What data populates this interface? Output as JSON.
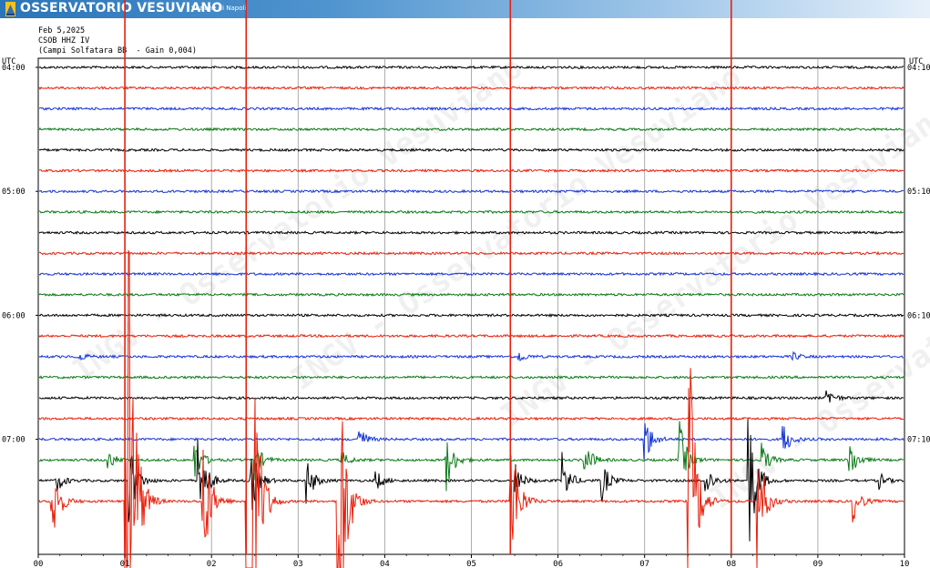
{
  "header": {
    "brand": "OSSERVATORIO VESUVIANO",
    "section": "Sezione di Napoli",
    "date": "Feb 5,2025",
    "station": "CSOB HHZ IV",
    "site": "(Campi Solfatara BB  - Gain 0,004)",
    "watermark": "INGV - Osservatorio Vesuviano"
  },
  "chart_data": {
    "type": "line",
    "title": "",
    "xlabel": "",
    "ylabel": "",
    "x_ticks": [
      "00",
      "01",
      "02",
      "03",
      "04",
      "05",
      "06",
      "07",
      "08",
      "09",
      "10"
    ],
    "xlim": [
      0,
      10
    ],
    "left_axis_label": "UTC",
    "right_axis_label": "UTC",
    "left_ticks": [
      "04:00",
      "05:00",
      "06:00",
      "07:00"
    ],
    "right_ticks": [
      "04:10",
      "05:10",
      "06:10",
      "07:10"
    ],
    "trace_colors": [
      "#000000",
      "#e8200c",
      "#1533d6",
      "#0a7a16"
    ],
    "trace_count": 22,
    "grid": true,
    "legend": "none",
    "events": [
      {
        "minute": 0.15,
        "trace": 21,
        "amplitude": 60
      },
      {
        "minute": 0.2,
        "trace": 20,
        "amplitude": 15
      },
      {
        "minute": 0.45,
        "trace": 14,
        "amplitude": 6
      },
      {
        "minute": 0.8,
        "trace": 19,
        "amplitude": 12
      },
      {
        "minute": 1.0,
        "trace": 21,
        "amplitude": 590
      },
      {
        "minute": 1.05,
        "trace": 20,
        "amplitude": 50
      },
      {
        "minute": 1.8,
        "trace": 19,
        "amplitude": 25
      },
      {
        "minute": 1.85,
        "trace": 20,
        "amplitude": 60
      },
      {
        "minute": 1.9,
        "trace": 21,
        "amplitude": 90
      },
      {
        "minute": 2.4,
        "trace": 21,
        "amplitude": 620
      },
      {
        "minute": 2.45,
        "trace": 20,
        "amplitude": 45
      },
      {
        "minute": 2.5,
        "trace": 19,
        "amplitude": 20
      },
      {
        "minute": 3.1,
        "trace": 20,
        "amplitude": 25
      },
      {
        "minute": 3.45,
        "trace": 21,
        "amplitude": 280
      },
      {
        "minute": 3.5,
        "trace": 19,
        "amplitude": 10
      },
      {
        "minute": 3.7,
        "trace": 18,
        "amplitude": 15
      },
      {
        "minute": 3.9,
        "trace": 20,
        "amplitude": 12
      },
      {
        "minute": 4.7,
        "trace": 19,
        "amplitude": 40
      },
      {
        "minute": 5.45,
        "trace": 21,
        "amplitude": 100
      },
      {
        "minute": 5.5,
        "trace": 20,
        "amplitude": 20
      },
      {
        "minute": 5.55,
        "trace": 14,
        "amplitude": 6
      },
      {
        "minute": 6.05,
        "trace": 20,
        "amplitude": 30
      },
      {
        "minute": 6.3,
        "trace": 19,
        "amplitude": 25
      },
      {
        "minute": 6.5,
        "trace": 20,
        "amplitude": 25
      },
      {
        "minute": 7.0,
        "trace": 18,
        "amplitude": 30
      },
      {
        "minute": 7.4,
        "trace": 19,
        "amplitude": 45
      },
      {
        "minute": 7.5,
        "trace": 21,
        "amplitude": 220
      },
      {
        "minute": 7.7,
        "trace": 20,
        "amplitude": 20
      },
      {
        "minute": 8.2,
        "trace": 20,
        "amplitude": 90
      },
      {
        "minute": 8.3,
        "trace": 21,
        "amplitude": 80
      },
      {
        "minute": 8.35,
        "trace": 19,
        "amplitude": 20
      },
      {
        "minute": 8.6,
        "trace": 18,
        "amplitude": 20
      },
      {
        "minute": 8.7,
        "trace": 14,
        "amplitude": 5
      },
      {
        "minute": 9.1,
        "trace": 16,
        "amplitude": 12
      },
      {
        "minute": 9.35,
        "trace": 19,
        "amplitude": 30
      },
      {
        "minute": 9.4,
        "trace": 21,
        "amplitude": 25
      },
      {
        "minute": 9.7,
        "trace": 20,
        "amplitude": 10
      }
    ]
  }
}
